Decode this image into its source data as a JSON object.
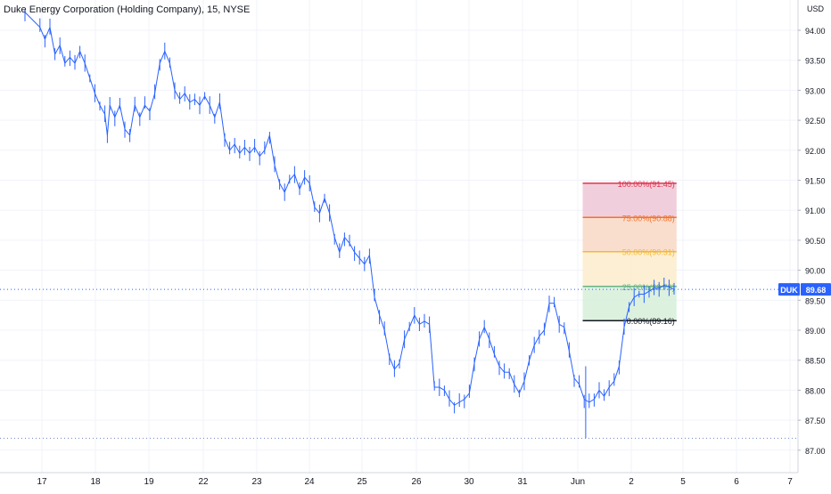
{
  "chart_data": {
    "type": "ohlc",
    "title": "Duke Energy Corporation (Holding Company), 15, NYSE",
    "currency_label": "USD",
    "ticker": "DUK",
    "last_price_label": "89.68",
    "y_ticks": [
      "94.00",
      "93.50",
      "93.00",
      "92.50",
      "92.00",
      "91.50",
      "91.00",
      "90.50",
      "90.00",
      "89.50",
      "89.00",
      "88.50",
      "88.00",
      "87.50",
      "87.00"
    ],
    "ylim": [
      86.8,
      94.4
    ],
    "x_ticks": [
      "17",
      "18",
      "19",
      "22",
      "23",
      "24",
      "25",
      "26",
      "30",
      "31",
      "Jun",
      "2",
      "5",
      "6",
      "7"
    ],
    "last_price": 89.68,
    "low_marker": 87.2,
    "fib_retracement": {
      "start_x": 111.7,
      "end_x": 130.5,
      "levels": [
        {
          "label": "100.00%(91.45)",
          "price": 91.45,
          "color": "#e0344e",
          "fill": "#eec6d6"
        },
        {
          "label": "75.00%(90.88)",
          "price": 90.88,
          "color": "#f2722c",
          "fill": "#f8d8c6"
        },
        {
          "label": "50.00%(90.31)",
          "price": 90.31,
          "color": "#f5b833",
          "fill": "#fbeccc"
        },
        {
          "label": "25.00%(89.73)",
          "price": 89.73,
          "color": "#6bb383",
          "fill": "#d7efd9"
        },
        {
          "label": "0.00%(89.16)",
          "price": 89.16,
          "color": "#131722",
          "fill": null
        }
      ]
    },
    "colors": {
      "bar": "#2962ff",
      "grid": "#f0f3fa",
      "last_price_line": "#2962ff",
      "axis_text": "#131722"
    },
    "series": [
      {
        "prices": [
          [
            0,
            94.3
          ],
          [
            3,
            94.05
          ],
          [
            4,
            93.85
          ],
          [
            5,
            94.05
          ],
          [
            6,
            93.6
          ],
          [
            7,
            93.75
          ],
          [
            8,
            93.45
          ],
          [
            9,
            93.55
          ],
          [
            10,
            93.45
          ],
          [
            11,
            93.65
          ],
          [
            12,
            93.45
          ],
          [
            13,
            93.2
          ],
          [
            14,
            92.95
          ],
          [
            15,
            92.75
          ],
          [
            16,
            92.6
          ],
          [
            16.5,
            92.25
          ],
          [
            17,
            92.75
          ],
          [
            18,
            92.55
          ],
          [
            19,
            92.75
          ],
          [
            20,
            92.35
          ],
          [
            21,
            92.25
          ],
          [
            22,
            92.75
          ],
          [
            23,
            92.55
          ],
          [
            24,
            92.75
          ],
          [
            25,
            92.65
          ],
          [
            26,
            92.95
          ],
          [
            27,
            93.45
          ],
          [
            28,
            93.65
          ],
          [
            29,
            93.45
          ],
          [
            30,
            93.0
          ],
          [
            31,
            92.85
          ],
          [
            32,
            92.95
          ],
          [
            33,
            92.8
          ],
          [
            34,
            92.85
          ],
          [
            35,
            92.75
          ],
          [
            36,
            92.9
          ],
          [
            37,
            92.75
          ],
          [
            38,
            92.55
          ],
          [
            39,
            92.8
          ],
          [
            40,
            92.2
          ],
          [
            41,
            92.0
          ],
          [
            42,
            92.1
          ],
          [
            43,
            91.95
          ],
          [
            44,
            92.05
          ],
          [
            45,
            91.95
          ],
          [
            46,
            92.05
          ],
          [
            47,
            91.9
          ],
          [
            48,
            92.0
          ],
          [
            49,
            92.25
          ],
          [
            50,
            91.75
          ],
          [
            51,
            91.45
          ],
          [
            52,
            91.3
          ],
          [
            53,
            91.5
          ],
          [
            54,
            91.6
          ],
          [
            55,
            91.35
          ],
          [
            56,
            91.55
          ],
          [
            57,
            91.45
          ],
          [
            58,
            91.05
          ],
          [
            59,
            90.95
          ],
          [
            60,
            91.2
          ],
          [
            61,
            90.95
          ],
          [
            62,
            90.55
          ],
          [
            63,
            90.3
          ],
          [
            64,
            90.55
          ],
          [
            65,
            90.45
          ],
          [
            66,
            90.3
          ],
          [
            67,
            90.2
          ],
          [
            68,
            90.1
          ],
          [
            69,
            90.25
          ],
          [
            70,
            89.55
          ],
          [
            71,
            89.25
          ],
          [
            72,
            89.0
          ],
          [
            73,
            88.55
          ],
          [
            74,
            88.35
          ],
          [
            75,
            88.45
          ],
          [
            76,
            88.85
          ],
          [
            77,
            89.05
          ],
          [
            78,
            89.25
          ],
          [
            79,
            89.1
          ],
          [
            80,
            89.15
          ],
          [
            81,
            89.1
          ],
          [
            82,
            88.05
          ],
          [
            83,
            88.05
          ],
          [
            84,
            88.0
          ],
          [
            85,
            87.85
          ],
          [
            86,
            87.75
          ],
          [
            87,
            87.8
          ],
          [
            88,
            87.85
          ],
          [
            89,
            87.95
          ],
          [
            90,
            88.45
          ],
          [
            91,
            88.85
          ],
          [
            92,
            89.05
          ],
          [
            93,
            88.85
          ],
          [
            94,
            88.6
          ],
          [
            95,
            88.4
          ],
          [
            96,
            88.3
          ],
          [
            97,
            88.3
          ],
          [
            98,
            88.1
          ],
          [
            99,
            87.95
          ],
          [
            100,
            88.15
          ],
          [
            101,
            88.5
          ],
          [
            102,
            88.75
          ],
          [
            103,
            88.9
          ],
          [
            104,
            89.0
          ],
          [
            105,
            89.45
          ],
          [
            106,
            89.45
          ],
          [
            107,
            89.1
          ],
          [
            108,
            89.05
          ],
          [
            109,
            88.65
          ],
          [
            110,
            88.2
          ],
          [
            111,
            88.1
          ],
          [
            112,
            87.85
          ],
          [
            113,
            87.8
          ],
          [
            114,
            87.85
          ],
          [
            115,
            88.0
          ],
          [
            116,
            87.9
          ],
          [
            117,
            88.05
          ],
          [
            118,
            88.15
          ],
          [
            119,
            88.4
          ],
          [
            120,
            89.05
          ],
          [
            121,
            89.4
          ],
          [
            122,
            89.55
          ],
          [
            123,
            89.6
          ],
          [
            124,
            89.6
          ],
          [
            125,
            89.65
          ],
          [
            126,
            89.7
          ],
          [
            127,
            89.7
          ],
          [
            128,
            89.75
          ],
          [
            129,
            89.72
          ],
          [
            130,
            89.68
          ]
        ]
      }
    ]
  }
}
